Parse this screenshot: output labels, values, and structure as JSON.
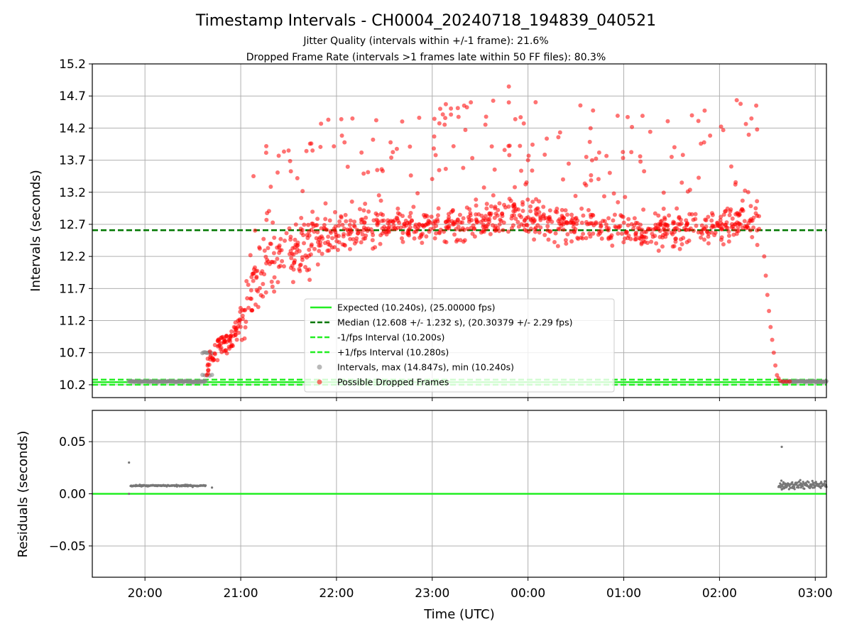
{
  "chart_data": [
    {
      "type": "scatter",
      "title": "Timestamp Intervals - CH0004_20240718_194839_040521",
      "subtitle_lines": [
        "Jitter Quality (intervals within +/-1 frame): 21.6%",
        "Dropped Frame Rate (intervals >1 frames late within 50 FF files): 80.3%"
      ],
      "xlabel": "",
      "ylabel": "Intervals (seconds)",
      "x_range": [
        "19:27",
        "03:07"
      ],
      "ylim": [
        10.0,
        15.2
      ],
      "yticks": [
        "10.2",
        "10.7",
        "11.2",
        "11.7",
        "12.2",
        "12.7",
        "13.2",
        "13.7",
        "14.2",
        "14.7",
        "15.2"
      ],
      "grid": true,
      "legend_position": "lower-center",
      "reference_lines": [
        {
          "name": "Expected (10.240s), (25.00000 fps)",
          "y": 10.24,
          "style": "solid",
          "color": "#22ee22"
        },
        {
          "name": "Median (12.608 +/- 1.232 s), (20.30379 +/- 2.29 fps)",
          "y": 12.608,
          "style": "dashed",
          "color": "#007700"
        },
        {
          "name": "-1/fps Interval (10.200s)",
          "y": 10.2,
          "style": "dashed",
          "color": "#22ee22"
        },
        {
          "name": "+1/fps Interval (10.280s)",
          "y": 10.28,
          "style": "dashed",
          "color": "#22ee22"
        }
      ],
      "series": [
        {
          "name": "Intervals, max (14.847s), min (10.240s)",
          "color": "#888888",
          "segments": [
            {
              "x_start": "19:50",
              "x_end": "20:38",
              "y": 10.25,
              "count": 110
            },
            {
              "x_start": "20:36",
              "x_end": "20:42",
              "y": 10.35,
              "count": 5
            },
            {
              "x_start": "20:36",
              "x_end": "20:42",
              "y": 10.7,
              "count": 8
            },
            {
              "x_start": "02:39",
              "x_end": "03:07",
              "y": 10.25,
              "count": 70
            }
          ]
        },
        {
          "name": "Possible Dropped Frames",
          "color": "#ff0000",
          "trend": [
            {
              "x": "20:38",
              "y": 10.5
            },
            {
              "x": "20:45",
              "y": 10.8
            },
            {
              "x": "20:55",
              "y": 10.9
            },
            {
              "x": "21:05",
              "y": 11.6
            },
            {
              "x": "21:15",
              "y": 12.0
            },
            {
              "x": "21:25",
              "y": 12.2
            },
            {
              "x": "21:35",
              "y": 12.3
            },
            {
              "x": "21:45",
              "y": 12.45
            },
            {
              "x": "22:00",
              "y": 12.55
            },
            {
              "x": "22:30",
              "y": 12.65
            },
            {
              "x": "23:00",
              "y": 12.7
            },
            {
              "x": "23:30",
              "y": 12.75
            },
            {
              "x": "23:50",
              "y": 12.85
            },
            {
              "x": "00:10",
              "y": 12.75
            },
            {
              "x": "00:40",
              "y": 12.65
            },
            {
              "x": "01:10",
              "y": 12.6
            },
            {
              "x": "01:40",
              "y": 12.6
            },
            {
              "x": "02:00",
              "y": 12.7
            },
            {
              "x": "02:15",
              "y": 12.8
            },
            {
              "x": "02:25",
              "y": 12.7
            }
          ],
          "outliers": [
            {
              "x": "23:48",
              "y": 14.847
            },
            {
              "x": "23:48",
              "y": 14.6
            },
            {
              "x": "23:20",
              "y": 14.55
            },
            {
              "x": "23:05",
              "y": 14.5
            },
            {
              "x": "02:23",
              "y": 14.55
            },
            {
              "x": "02:20",
              "y": 14.35
            },
            {
              "x": "22:10",
              "y": 14.35
            },
            {
              "x": "21:30",
              "y": 13.85
            },
            {
              "x": "21:45",
              "y": 13.85
            },
            {
              "x": "01:30",
              "y": 13.75
            },
            {
              "x": "00:00",
              "y": 13.7
            },
            {
              "x": "21:08",
              "y": 13.45
            }
          ],
          "dropoff": [
            {
              "x": "02:28",
              "y": 12.2
            },
            {
              "x": "02:29",
              "y": 11.9
            },
            {
              "x": "02:30",
              "y": 11.6
            },
            {
              "x": "02:31",
              "y": 11.35
            },
            {
              "x": "02:32",
              "y": 11.1
            },
            {
              "x": "02:33",
              "y": 10.9
            },
            {
              "x": "02:34",
              "y": 10.7
            },
            {
              "x": "02:35",
              "y": 10.5
            },
            {
              "x": "02:36",
              "y": 10.35
            },
            {
              "x": "02:37",
              "y": 10.3
            },
            {
              "x": "02:38",
              "y": 10.26
            },
            {
              "x": "02:40",
              "y": 10.25
            },
            {
              "x": "02:42",
              "y": 10.25
            },
            {
              "x": "02:44",
              "y": 10.25
            }
          ]
        }
      ]
    },
    {
      "type": "scatter",
      "title": "",
      "xlabel": "Time (UTC)",
      "ylabel": "Residuals (seconds)",
      "x_range": [
        "19:27",
        "03:07"
      ],
      "xticks": [
        "20:00",
        "21:00",
        "22:00",
        "23:00",
        "00:00",
        "01:00",
        "02:00",
        "03:00"
      ],
      "ylim": [
        -0.08,
        0.08
      ],
      "yticks": [
        "−0.05",
        "0.00",
        "0.05"
      ],
      "grid": true,
      "reference_lines": [
        {
          "y": 0.0,
          "style": "solid",
          "color": "#22ee22"
        }
      ],
      "series": [
        {
          "color": "#777777",
          "points": [
            {
              "x": "19:50",
              "y": 0.03
            },
            {
              "x": "19:50",
              "y": 0.0
            },
            {
              "x": "20:42",
              "y": 0.006
            },
            {
              "x": "02:39",
              "y": 0.045
            }
          ],
          "segments": [
            {
              "x_start": "19:51",
              "x_end": "20:38",
              "y": 0.0078,
              "spread": 0.0008,
              "count": 140
            },
            {
              "x_start": "02:37",
              "x_end": "03:07",
              "y": 0.0085,
              "spread": 0.004,
              "count": 120
            }
          ]
        }
      ]
    }
  ]
}
